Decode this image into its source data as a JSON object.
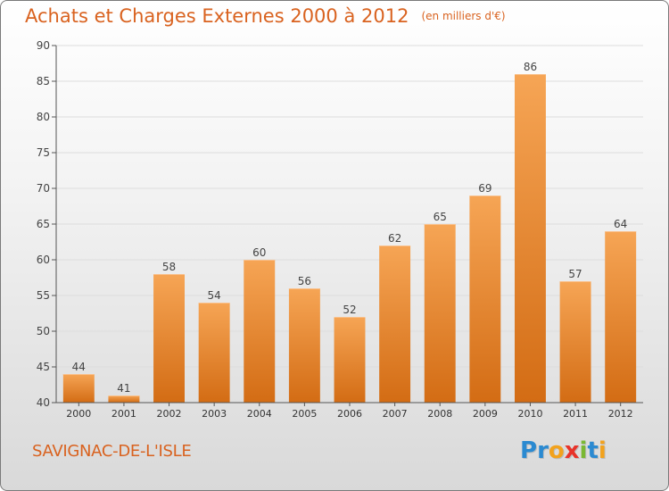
{
  "header": {
    "title": "Achats et Charges Externes 2000 à 2012",
    "subtitle": "(en milliers d'€)"
  },
  "footer": {
    "town": "SAVIGNAC-DE-L'ISLE",
    "logo_text": "Proxiti",
    "logo_letters": [
      {
        "char": "P",
        "color": "#2b8ad1"
      },
      {
        "char": "r",
        "color": "#2b8ad1"
      },
      {
        "char": "o",
        "color": "#f2a21d"
      },
      {
        "char": "x",
        "color": "#e8332a"
      },
      {
        "char": "i",
        "color": "#7ab833"
      },
      {
        "char": "t",
        "color": "#2b8ad1"
      },
      {
        "char": "i",
        "color": "#f2a21d"
      }
    ]
  },
  "colors": {
    "accent": "#d9621f",
    "bar_top": "#f6a555",
    "bar_bottom": "#d36c14",
    "grid": "#dddddd",
    "axis": "#555555"
  },
  "chart_data": {
    "type": "bar",
    "title": "Achats et Charges Externes 2000 à 2012",
    "subtitle": "(en milliers d'€)",
    "xlabel": "",
    "ylabel": "",
    "categories": [
      "2000",
      "2001",
      "2002",
      "2003",
      "2004",
      "2005",
      "2006",
      "2007",
      "2008",
      "2009",
      "2010",
      "2011",
      "2012"
    ],
    "values": [
      44,
      41,
      58,
      54,
      60,
      56,
      52,
      62,
      65,
      69,
      86,
      57,
      64
    ],
    "ylim": [
      40,
      90
    ],
    "yticks": [
      40,
      45,
      50,
      55,
      60,
      65,
      70,
      75,
      80,
      85,
      90
    ],
    "grid": true,
    "data_labels": true,
    "legend": "none"
  }
}
